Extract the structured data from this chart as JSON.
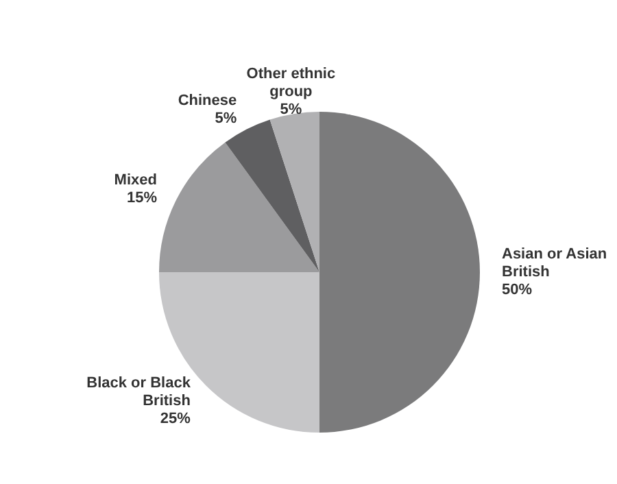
{
  "chart_data": {
    "type": "pie",
    "categories": [
      "Asian or Asian British",
      "Black or Black British",
      "Mixed",
      "Chinese",
      "Other ethnic group"
    ],
    "values": [
      50,
      25,
      15,
      5,
      5
    ],
    "value_labels": [
      "50%",
      "25%",
      "15%",
      "5%",
      "5%"
    ],
    "colors": [
      "#7b7b7c",
      "#c6c6c8",
      "#9b9b9d",
      "#5f5f61",
      "#b1b1b3"
    ],
    "legend": false
  }
}
